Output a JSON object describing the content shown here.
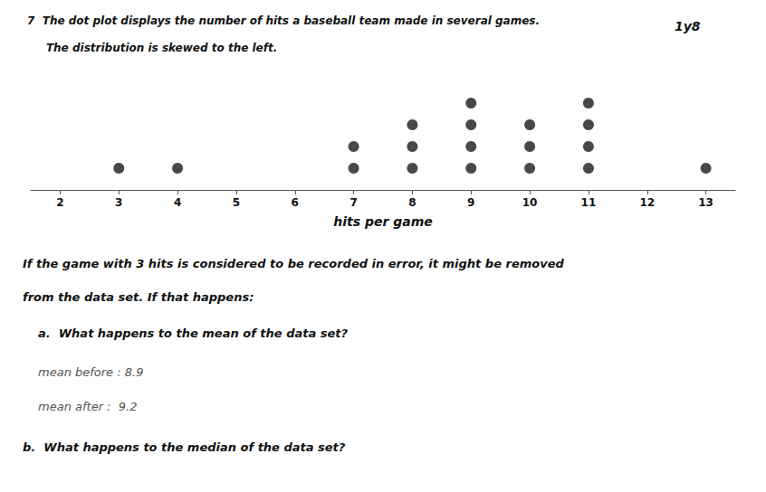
{
  "chart_data": {
    "type": "dot",
    "title": "7  The dot plot displays the number of hits a baseball team made in several games.",
    "subtitle": "     The distribution is skewed to the left.",
    "xlabel": "hits per game",
    "x": [
      3,
      4,
      7,
      8,
      9,
      10,
      11,
      13
    ],
    "values": [
      1,
      1,
      2,
      3,
      4,
      3,
      4,
      1
    ],
    "xlim": [
      1.5,
      13.5
    ],
    "xticks": [
      2,
      3,
      4,
      5,
      6,
      7,
      8,
      9,
      10,
      11,
      12,
      13
    ],
    "ylim": [
      0,
      5
    ],
    "tick_labels": "x",
    "grid": false,
    "color": "#1a1a1a",
    "annotations": [
      "1y8",
      "If the game with 3 hits is considered to be recorded in error, it might be removed",
      "from the data set. If that happens:",
      "a.  What happens to the mean of the data set?",
      "mean before : 8.9",
      "mean after :  9.2",
      "b.  What happens to the median of the data set?"
    ]
  }
}
